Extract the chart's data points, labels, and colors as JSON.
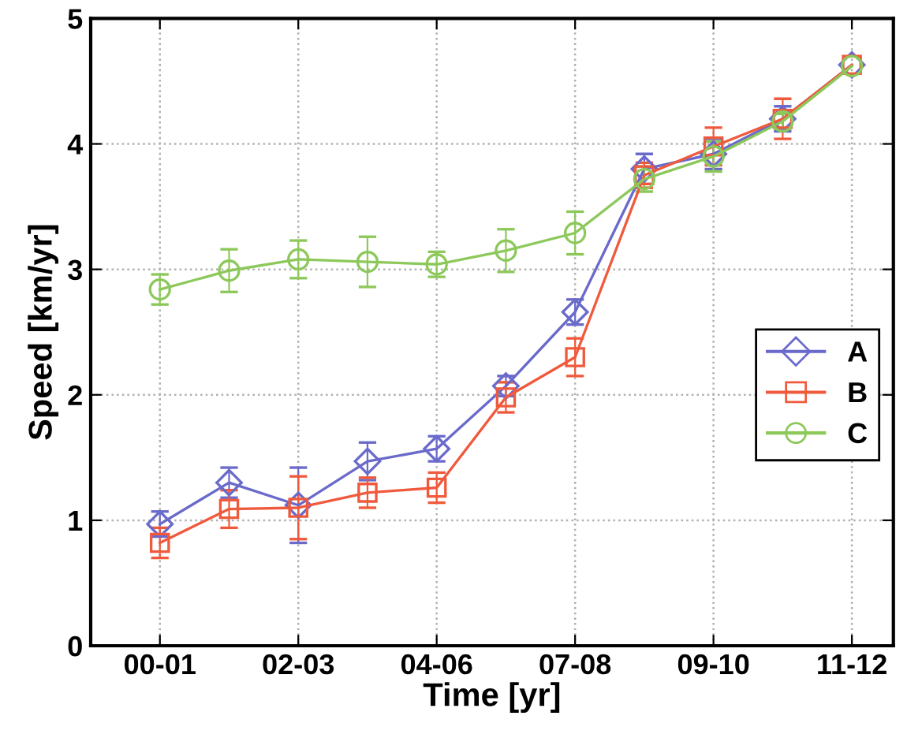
{
  "chart_data": {
    "type": "line",
    "xlabel": "Time [yr]",
    "ylabel": "Speed [km/yr]",
    "categories": [
      "00-01",
      null,
      "02-03",
      null,
      "04-06",
      null,
      "07-08",
      null,
      "09-10",
      null,
      "11-12"
    ],
    "series": [
      {
        "name": "A",
        "color": "#6a6acb",
        "marker": "diamond",
        "values": [
          0.97,
          1.3,
          1.12,
          1.47,
          1.57,
          2.07,
          2.66,
          3.8,
          3.92,
          4.2,
          4.63
        ],
        "errors": [
          0.1,
          0.12,
          0.3,
          0.15,
          0.1,
          0.08,
          0.1,
          0.12,
          0.12,
          0.1,
          null
        ]
      },
      {
        "name": "B",
        "color": "#f05a3c",
        "marker": "square",
        "values": [
          0.82,
          1.09,
          1.1,
          1.22,
          1.26,
          1.98,
          2.3,
          3.75,
          3.98,
          4.2,
          4.63
        ],
        "errors": [
          0.12,
          0.15,
          0.25,
          0.12,
          0.12,
          0.12,
          0.15,
          0.1,
          0.15,
          0.16,
          null
        ]
      },
      {
        "name": "C",
        "color": "#8cc85a",
        "marker": "circle",
        "values": [
          2.84,
          2.99,
          3.08,
          3.06,
          3.04,
          3.15,
          3.29,
          3.72,
          3.9,
          4.18,
          4.62
        ],
        "errors": [
          0.12,
          0.17,
          0.15,
          0.2,
          0.1,
          0.17,
          0.17,
          0.1,
          0.12,
          0.06,
          null
        ]
      }
    ],
    "ylim": [
      0,
      5
    ],
    "yticks": [
      0,
      1,
      2,
      3,
      4,
      5
    ],
    "grid": true,
    "legend": "right",
    "line_style": "solid"
  }
}
